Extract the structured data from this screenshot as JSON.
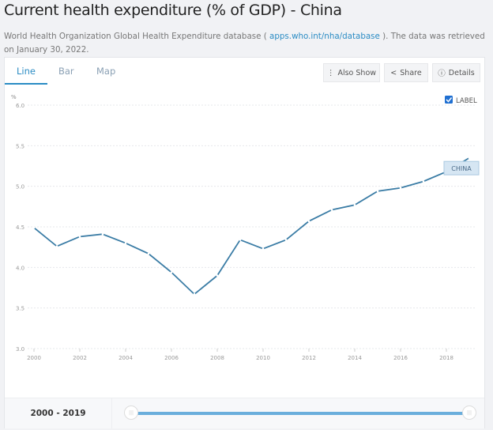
{
  "header": {
    "title": "Current health expenditure (% of GDP) - China",
    "source_prefix": "World Health Organization Global Health Expenditure database ( ",
    "source_link": "apps.who.int/nha/database",
    "source_suffix": " ). The data was retrieved on January 30, 2022."
  },
  "tabs": [
    {
      "label": "Line"
    },
    {
      "label": "Bar"
    },
    {
      "label": "Map"
    }
  ],
  "toolbar": {
    "also_show": "Also Show",
    "share": "Share",
    "details": "Details"
  },
  "label_toggle": {
    "label": "LABEL",
    "checked": true
  },
  "range": {
    "label": "2000 - 2019"
  },
  "colors": {
    "line": "#3a7ca5",
    "accent": "#2b8cc4"
  },
  "chart_data": {
    "type": "line",
    "ylabel": "%",
    "ylim": [
      3.0,
      6.0
    ],
    "yticks": [
      "3.0",
      "3.5",
      "4.0",
      "4.5",
      "5.0",
      "5.5",
      "6.0"
    ],
    "xticks": [
      "2000",
      "2002",
      "2004",
      "2006",
      "2008",
      "2010",
      "2012",
      "2014",
      "2016",
      "2018"
    ],
    "grid": true,
    "series": [
      {
        "name": "CHINA",
        "x": [
          2000,
          2001,
          2002,
          2003,
          2004,
          2005,
          2006,
          2007,
          2008,
          2009,
          2010,
          2011,
          2012,
          2013,
          2014,
          2015,
          2016,
          2017,
          2018,
          2019
        ],
        "values": [
          4.49,
          4.26,
          4.38,
          4.41,
          4.3,
          4.17,
          3.94,
          3.67,
          3.9,
          4.34,
          4.23,
          4.34,
          4.57,
          4.71,
          4.77,
          4.94,
          4.98,
          5.06,
          5.18,
          5.35
        ]
      }
    ]
  }
}
